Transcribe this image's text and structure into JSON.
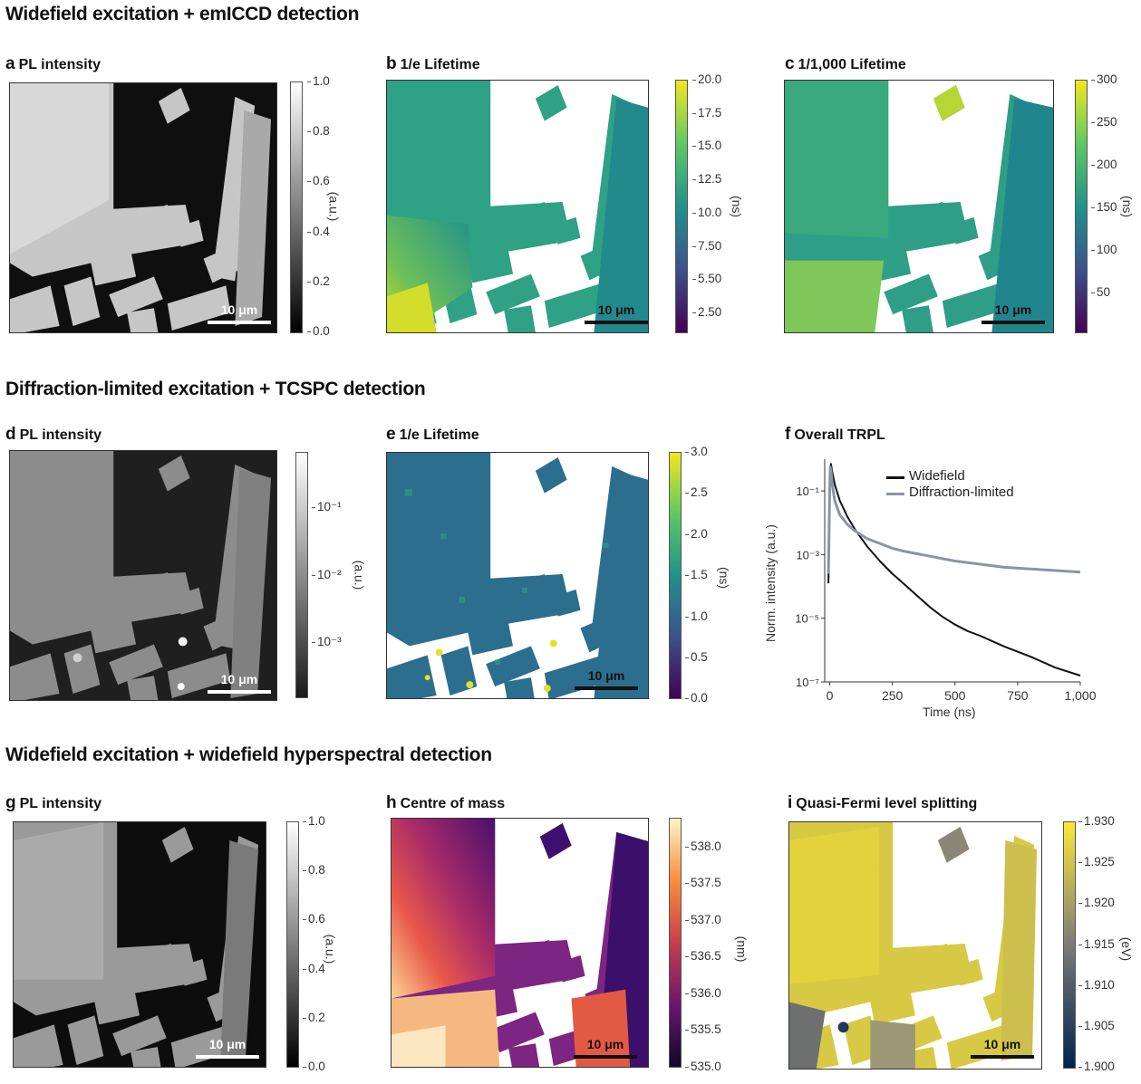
{
  "sections": [
    "Widefield excitation + emICCD detection",
    "Diffraction-limited excitation + TCSPC detection",
    "Widefield excitation + widefield hyperspectral detection"
  ],
  "panels": {
    "a": {
      "letter": "a",
      "title": "PL intensity",
      "scale": "10 μm",
      "unit": "(a.u.)",
      "ticks": [
        "1.0",
        "0.8",
        "0.6",
        "0.4",
        "0.2",
        "0.0"
      ]
    },
    "b": {
      "letter": "b",
      "title": "1/e Lifetime",
      "scale": "10 μm",
      "unit": "(ns)",
      "ticks": [
        "20.0",
        "17.5",
        "15.0",
        "12.5",
        "10.0",
        "7.50",
        "5.50",
        "2.50"
      ]
    },
    "c": {
      "letter": "c",
      "title": "1/1,000 Lifetime",
      "scale": "10 μm",
      "unit": "(ns)",
      "ticks": [
        "300",
        "250",
        "200",
        "150",
        "100",
        "50"
      ]
    },
    "d": {
      "letter": "d",
      "title": "PL intensity",
      "scale": "10 μm",
      "unit": "(a.u.)",
      "ticks": [
        "10⁻¹",
        "10⁻²",
        "10⁻³"
      ]
    },
    "e": {
      "letter": "e",
      "title": "1/e Lifetime",
      "scale": "10 μm",
      "unit": "(ns)",
      "ticks": [
        "3.0",
        "2.5",
        "2.0",
        "1.5",
        "1.0",
        "0.5",
        "0.0"
      ]
    },
    "f": {
      "letter": "f",
      "title": "Overall TRPL"
    },
    "g": {
      "letter": "g",
      "title": "PL intensity",
      "scale": "10 μm",
      "unit": "(a.u.)",
      "ticks": [
        "1.0",
        "0.8",
        "0.6",
        "0.4",
        "0.2",
        "0.0"
      ]
    },
    "h": {
      "letter": "h",
      "title": "Centre of mass",
      "scale": "10 μm",
      "unit": "(nm)",
      "ticks": [
        "538.0",
        "537.5",
        "537.0",
        "536.5",
        "536.0",
        "535.5",
        "535.0"
      ]
    },
    "i": {
      "letter": "i",
      "title": "Quasi-Fermi level splitting",
      "scale": "10 μm",
      "unit": "(eV)",
      "ticks": [
        "1.930",
        "1.925",
        "1.920",
        "1.915",
        "1.910",
        "1.905",
        "1.900"
      ]
    }
  },
  "chart_data": {
    "type": "line",
    "title": "Overall TRPL",
    "xlabel": "Time (ns)",
    "ylabel": "Norm. intensity (a.u.)",
    "xlim": [
      -20,
      1000
    ],
    "ylim_log10": [
      -7,
      0
    ],
    "yscale": "log",
    "x_ticks": [
      "0",
      "250",
      "500",
      "750",
      "1,000"
    ],
    "y_ticks": [
      "10⁻¹",
      "10⁻³",
      "10⁻⁵",
      "10⁻⁷"
    ],
    "legend": "top-right",
    "series": [
      {
        "name": "Widefield",
        "color": "#111111",
        "x": [
          -5,
          0,
          2,
          5,
          10,
          20,
          40,
          70,
          100,
          150,
          200,
          250,
          300,
          350,
          400,
          450,
          500,
          550,
          600,
          700,
          800,
          900,
          1000
        ],
        "log10y": [
          -3.9,
          -1.3,
          -0.3,
          -0.15,
          -0.4,
          -0.8,
          -1.3,
          -1.8,
          -2.2,
          -2.75,
          -3.2,
          -3.6,
          -3.95,
          -4.3,
          -4.65,
          -4.95,
          -5.2,
          -5.4,
          -5.55,
          -5.9,
          -6.2,
          -6.55,
          -6.8
        ]
      },
      {
        "name": "Diffraction-limited",
        "color": "#8c93a3",
        "x": [
          -5,
          0,
          2,
          5,
          10,
          20,
          40,
          70,
          100,
          150,
          200,
          250,
          300,
          400,
          500,
          600,
          700,
          800,
          900,
          1000
        ],
        "log10y": [
          -3.6,
          -1.0,
          -0.25,
          -0.35,
          -0.8,
          -1.3,
          -1.75,
          -2.05,
          -2.25,
          -2.5,
          -2.65,
          -2.8,
          -2.9,
          -3.05,
          -3.2,
          -3.3,
          -3.4,
          -3.45,
          -3.5,
          -3.55
        ]
      }
    ]
  },
  "colors": {
    "viridis_top": "#f3e61f",
    "viridis_bottom": "#440154",
    "inferno_top": "#fcf5c6",
    "inferno_bottom": "#0d0829",
    "cividis_top": "#fde737",
    "cividis_bottom": "#00224e"
  }
}
